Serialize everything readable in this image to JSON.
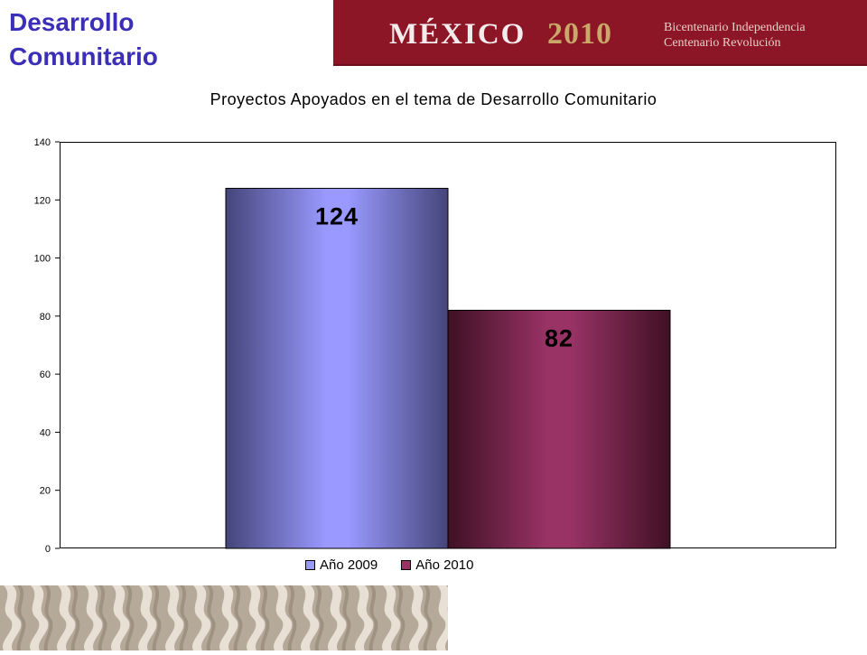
{
  "slide": {
    "title_line1": "Desarrollo",
    "title_line2": "Comunitario"
  },
  "banner": {
    "logo_mexico": "MÉXICO",
    "logo_year": "2010",
    "tagline_line1": "Bicentenario Independencia",
    "tagline_line2": "Centenario Revolución"
  },
  "colors": {
    "title": "#3b2fb8",
    "banner": "#8c1526",
    "bar_2009": "#9999ff",
    "bar_2009_dark": "#45457a",
    "bar_2010": "#993366",
    "bar_2010_dark": "#3f1024"
  },
  "chart_data": {
    "type": "bar",
    "title": "Proyectos Apoyados en el tema de Desarrollo Comunitario",
    "categories": [
      ""
    ],
    "series": [
      {
        "name": "Año 2009",
        "values": [
          124
        ],
        "data_label": "124"
      },
      {
        "name": "Año 2010",
        "values": [
          82
        ],
        "data_label": "82"
      }
    ],
    "ylim": [
      0,
      140
    ],
    "yticks": [
      0,
      20,
      40,
      60,
      80,
      100,
      120,
      140
    ],
    "xlabel": "",
    "ylabel": "",
    "grid": false,
    "legend": "bottom"
  }
}
